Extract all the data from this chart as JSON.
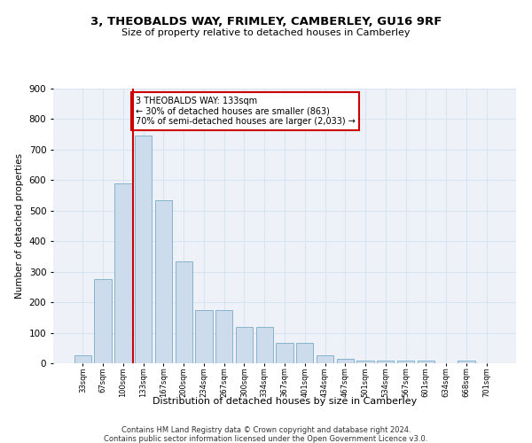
{
  "title1": "3, THEOBALDS WAY, FRIMLEY, CAMBERLEY, GU16 9RF",
  "title2": "Size of property relative to detached houses in Camberley",
  "xlabel": "Distribution of detached houses by size in Camberley",
  "ylabel": "Number of detached properties",
  "footer1": "Contains HM Land Registry data © Crown copyright and database right 2024.",
  "footer2": "Contains public sector information licensed under the Open Government Licence v3.0.",
  "annotation_line1": "3 THEOBALDS WAY: 133sqm",
  "annotation_line2": "← 30% of detached houses are smaller (863)",
  "annotation_line3": "70% of semi-detached houses are larger (2,033) →",
  "bar_values": [
    27,
    275,
    590,
    745,
    535,
    335,
    175,
    175,
    120,
    120,
    68,
    68,
    25,
    15,
    10,
    10,
    10,
    10,
    0,
    10,
    0
  ],
  "bin_labels": [
    "33sqm",
    "67sqm",
    "100sqm",
    "133sqm",
    "167sqm",
    "200sqm",
    "234sqm",
    "267sqm",
    "300sqm",
    "334sqm",
    "367sqm",
    "401sqm",
    "434sqm",
    "467sqm",
    "501sqm",
    "534sqm",
    "567sqm",
    "601sqm",
    "634sqm",
    "668sqm",
    "701sqm"
  ],
  "bar_color": "#ccdcec",
  "bar_edge_color": "#7aaac8",
  "vline_color": "#cc0000",
  "annotation_box_edge": "#cc0000",
  "grid_color": "#d8e4f0",
  "background_color": "#eef2f8",
  "ylim": [
    0,
    900
  ],
  "yticks": [
    0,
    100,
    200,
    300,
    400,
    500,
    600,
    700,
    800,
    900
  ]
}
